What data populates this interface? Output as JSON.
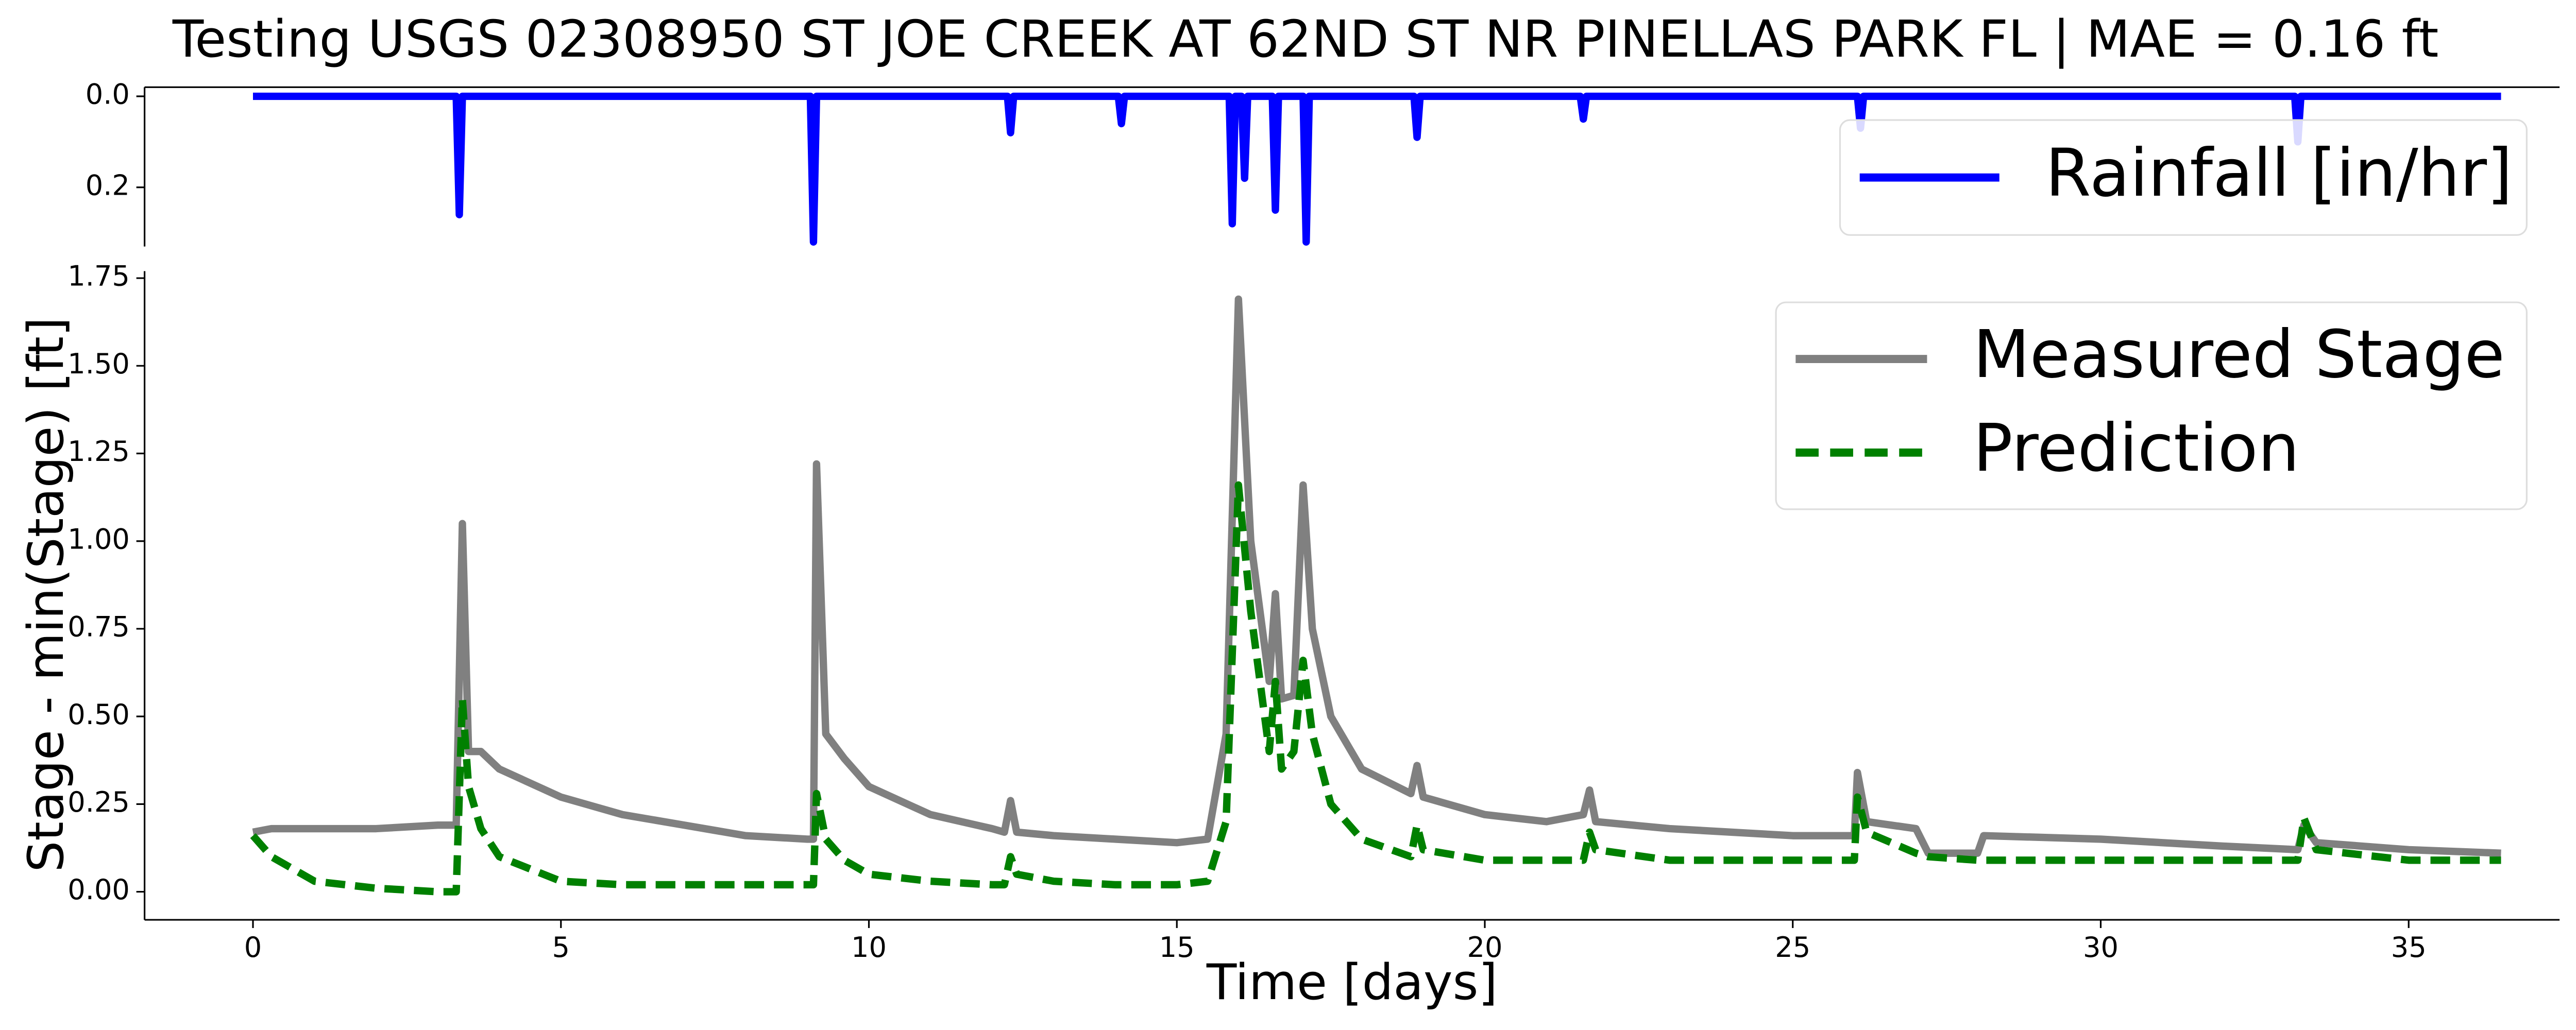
{
  "chart_data": [
    {
      "type": "line",
      "title": "Testing USGS 02308950 ST JOE CREEK AT 62ND ST NR PINELLAS PARK FL | MAE = 0.16 ft",
      "x": [
        0,
        3.3,
        3.35,
        3.4,
        9.05,
        9.1,
        9.15,
        12.25,
        12.3,
        12.35,
        14.05,
        14.1,
        14.15,
        15.85,
        15.9,
        15.95,
        16.05,
        16.1,
        16.15,
        16.55,
        16.6,
        16.65,
        17.05,
        17.1,
        17.15,
        18.85,
        18.9,
        18.95,
        21.55,
        21.6,
        21.65,
        26.05,
        26.1,
        26.15,
        33.15,
        33.2,
        33.25,
        36.5
      ],
      "series": [
        {
          "name": "Rainfall [in/hr]",
          "color": "#0000ff",
          "values": [
            0,
            0,
            0.26,
            0,
            0,
            0.32,
            0,
            0,
            0.08,
            0,
            0,
            0.06,
            0,
            0,
            0.28,
            0,
            0,
            0.18,
            0,
            0,
            0.25,
            0,
            0,
            0.32,
            0,
            0,
            0.09,
            0,
            0,
            0.05,
            0,
            0,
            0.07,
            0,
            0,
            0.1,
            0,
            0
          ]
        }
      ],
      "xlim": [
        -1.76,
        37.45
      ],
      "ylim": [
        -0.02,
        0.33
      ],
      "y_inverted": true,
      "yticks": [
        {
          "value": 0,
          "label": "0.0"
        },
        {
          "value": 0.2,
          "label": "0.2"
        }
      ],
      "legend": "upper right"
    },
    {
      "type": "line",
      "xlabel": "Time [days]",
      "ylabel": "Stage - min(Stage) [ft]",
      "x": [
        0,
        0.3,
        1,
        2,
        3,
        3.3,
        3.4,
        3.5,
        3.7,
        4,
        5,
        6,
        7,
        8,
        9,
        9.1,
        9.15,
        9.3,
        9.6,
        10,
        11,
        12,
        12.2,
        12.3,
        12.4,
        13,
        14,
        15,
        15.5,
        15.8,
        16.0,
        16.2,
        16.5,
        16.6,
        16.7,
        16.9,
        17.05,
        17.2,
        17.5,
        18,
        18.8,
        18.9,
        19,
        20,
        21,
        21.6,
        21.7,
        21.8,
        23,
        25,
        26,
        26.05,
        26.2,
        27,
        27.2,
        28,
        28.1,
        30,
        32,
        33.2,
        33.3,
        33.5,
        35,
        36.5
      ],
      "series": [
        {
          "name": "Measured Stage",
          "color": "#808080",
          "dash": false,
          "values": [
            0.17,
            0.18,
            0.18,
            0.18,
            0.19,
            0.19,
            1.05,
            0.4,
            0.4,
            0.35,
            0.27,
            0.22,
            0.19,
            0.16,
            0.15,
            0.15,
            1.22,
            0.45,
            0.38,
            0.3,
            0.22,
            0.18,
            0.17,
            0.26,
            0.17,
            0.16,
            0.15,
            0.14,
            0.15,
            0.45,
            1.69,
            1.0,
            0.6,
            0.85,
            0.55,
            0.56,
            1.16,
            0.75,
            0.5,
            0.35,
            0.28,
            0.36,
            0.27,
            0.22,
            0.2,
            0.22,
            0.29,
            0.2,
            0.18,
            0.16,
            0.16,
            0.34,
            0.2,
            0.18,
            0.11,
            0.11,
            0.16,
            0.15,
            0.13,
            0.12,
            0.19,
            0.14,
            0.12,
            0.11
          ]
        },
        {
          "name": "Prediction",
          "color": "#008000",
          "dash": true,
          "values": [
            0.16,
            0.1,
            0.03,
            0.01,
            0.0,
            0.0,
            0.55,
            0.3,
            0.18,
            0.1,
            0.03,
            0.02,
            0.02,
            0.02,
            0.02,
            0.02,
            0.28,
            0.15,
            0.09,
            0.05,
            0.03,
            0.02,
            0.02,
            0.1,
            0.05,
            0.03,
            0.02,
            0.02,
            0.03,
            0.2,
            1.16,
            0.8,
            0.4,
            0.6,
            0.35,
            0.4,
            0.66,
            0.45,
            0.25,
            0.15,
            0.1,
            0.19,
            0.12,
            0.09,
            0.09,
            0.09,
            0.17,
            0.12,
            0.09,
            0.09,
            0.09,
            0.27,
            0.17,
            0.11,
            0.1,
            0.09,
            0.09,
            0.09,
            0.09,
            0.09,
            0.21,
            0.12,
            0.09,
            0.09
          ]
        }
      ],
      "xlim": [
        -1.76,
        37.45
      ],
      "ylim": [
        -0.08,
        1.77
      ],
      "xticks": [
        0,
        5,
        10,
        15,
        20,
        25,
        30,
        35
      ],
      "yticks": [
        {
          "value": 0,
          "label": "0.00"
        },
        {
          "value": 0.25,
          "label": "0.25"
        },
        {
          "value": 0.5,
          "label": "0.50"
        },
        {
          "value": 0.75,
          "label": "0.75"
        },
        {
          "value": 1,
          "label": "1.00"
        },
        {
          "value": 1.25,
          "label": "1.25"
        },
        {
          "value": 1.5,
          "label": "1.50"
        },
        {
          "value": 1.75,
          "label": "1.75"
        }
      ],
      "legend": "upper right"
    }
  ]
}
